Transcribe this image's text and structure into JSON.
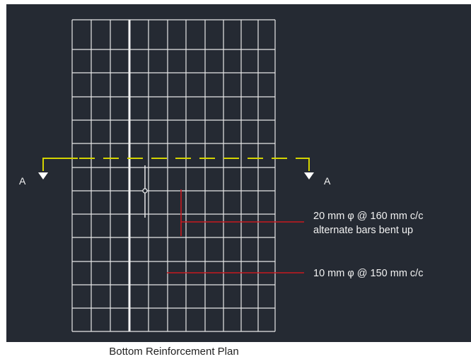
{
  "drawing": {
    "background_color": "#252a33",
    "grid_color": "#e8e8e8",
    "section_line_color": "#d4d400",
    "leader_color": "#c8191f",
    "title": "Bottom Reinforcement Plan",
    "section_marks": {
      "left": "A",
      "right": "A"
    },
    "callouts": {
      "bent_bars_line1": "20 mm φ @ 160 mm c/c",
      "bent_bars_line2": "alternate bars bent up",
      "straight_bars": "10 mm φ @ 150 mm c/c"
    }
  }
}
